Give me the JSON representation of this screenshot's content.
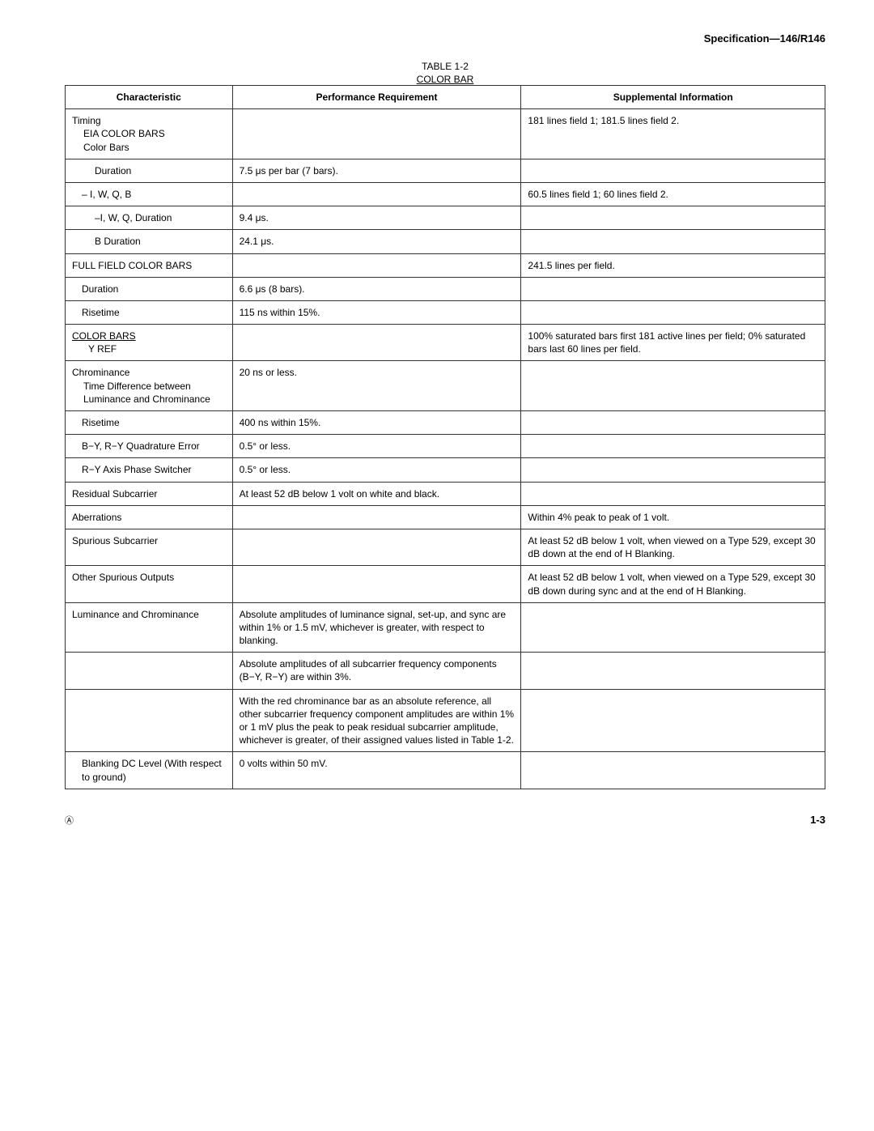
{
  "header": "Specification—146/R146",
  "table_label": "TABLE 1-2",
  "table_title": "COLOR BAR",
  "columns": [
    "Characteristic",
    "Performance Requirement",
    "Supplemental Information"
  ],
  "rows": [
    {
      "c": "Timing\nEIA COLOR BARS\nColor Bars",
      "p": "",
      "s": "181 lines field 1; 181.5 lines field 2.",
      "cls": ""
    },
    {
      "c": "Duration",
      "p": "7.5 μs per bar (7 bars).",
      "s": "",
      "cls": "indent2"
    },
    {
      "c": "– I, W, Q, B",
      "p": "",
      "s": "60.5 lines field 1; 60 lines field 2.",
      "cls": "indent1"
    },
    {
      "c": "–I, W, Q, Duration",
      "p": "9.4 μs.",
      "s": "",
      "cls": "indent2"
    },
    {
      "c": "B Duration",
      "p": "24.1 μs.",
      "s": "",
      "cls": "indent2"
    },
    {
      "c": "FULL FIELD COLOR BARS",
      "p": "",
      "s": "241.5 lines per field.",
      "cls": ""
    },
    {
      "c": "Duration",
      "p": "6.6 μs (8 bars).",
      "s": "",
      "cls": "indent1"
    },
    {
      "c": "Risetime",
      "p": "115 ns within 15%.",
      "s": "",
      "cls": "indent1"
    },
    {
      "c": "COLOR BARS\nY REF",
      "p": "",
      "s": "100% saturated bars first 181 active lines per field; 0% saturated bars last 60 lines per field.",
      "cls": "",
      "ul": true
    },
    {
      "c": "Chrominance\nTime Difference between Luminance and Chrominance",
      "p": "20 ns or less.",
      "s": "",
      "cls": ""
    },
    {
      "c": "Risetime",
      "p": "400 ns within 15%.",
      "s": "",
      "cls": "indent1"
    },
    {
      "c": "B−Y, R−Y Quadrature Error",
      "p": "0.5° or less.",
      "s": "",
      "cls": "indent1"
    },
    {
      "c": "R−Y Axis Phase Switcher",
      "p": "0.5° or less.",
      "s": "",
      "cls": "indent1"
    },
    {
      "c": "Residual Subcarrier",
      "p": "At least 52 dB below 1 volt on white and black.",
      "s": "",
      "cls": ""
    },
    {
      "c": "Aberrations",
      "p": "",
      "s": "Within 4% peak to peak of 1 volt.",
      "cls": ""
    },
    {
      "c": "Spurious Subcarrier",
      "p": "",
      "s": "At least 52 dB below 1 volt, when viewed on a Type 529, except 30 dB down at the end of H Blanking.",
      "cls": ""
    },
    {
      "c": "Other Spurious Outputs",
      "p": "",
      "s": "At least 52 dB below 1 volt, when viewed on a Type 529, except 30 dB down during sync and at the end of H Blanking.",
      "cls": ""
    },
    {
      "c": "Luminance and Chrominance",
      "p": "Absolute amplitudes of luminance signal, set-up, and sync are within 1% or 1.5 mV, whichever is greater, with respect to blanking.",
      "s": "",
      "cls": ""
    },
    {
      "c": "",
      "p": "Absolute amplitudes of all subcarrier frequency components (B−Y, R−Y) are within 3%.",
      "s": "",
      "cls": ""
    },
    {
      "c": "",
      "p": "With the red chrominance bar as an absolute reference, all other subcarrier frequency component amplitudes are within 1% or 1 mV plus the peak to peak residual subcarrier amplitude, whichever is greater, of their assigned values listed in Table 1-2.",
      "s": "",
      "cls": ""
    },
    {
      "c": "Blanking DC Level (With respect to ground)",
      "p": "0 volts within 50 mV.",
      "s": "",
      "cls": "indent1"
    }
  ],
  "footer_mark": "Ⓐ",
  "page_number": "1-3"
}
